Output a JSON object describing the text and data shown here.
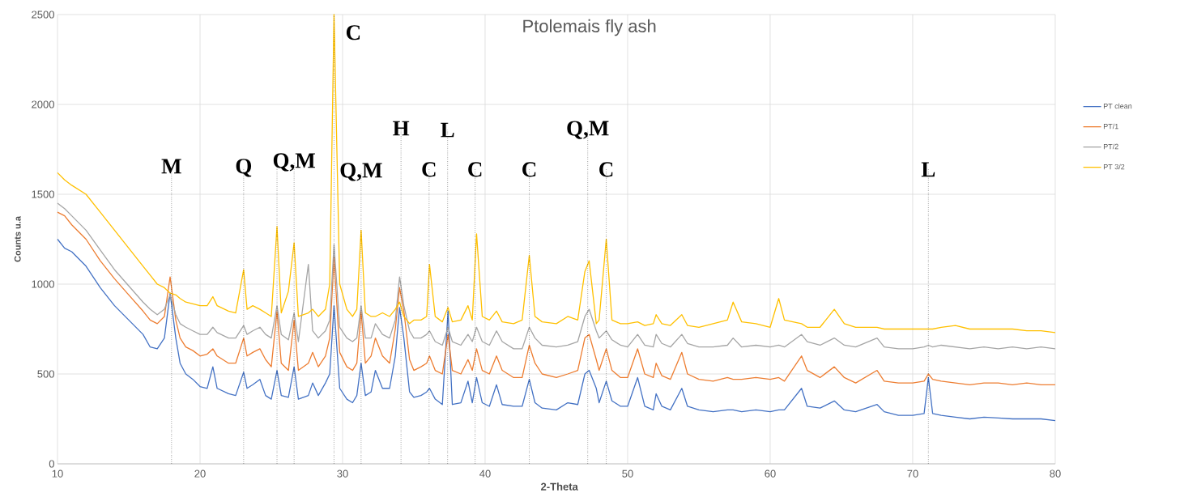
{
  "chart_data": {
    "type": "line",
    "title": "Ptolemais fly ash",
    "xlabel": "2-Theta",
    "ylabel": "Counts u.a",
    "x": [
      10,
      10.5,
      11,
      12,
      13,
      14,
      15,
      16,
      16.5,
      17,
      17.5,
      17.9,
      18.3,
      18.6,
      19,
      19.5,
      20,
      20.5,
      20.9,
      21.2,
      22,
      22.5,
      23.06,
      23.3,
      23.7,
      24.2,
      24.6,
      25,
      25.4,
      25.7,
      26.2,
      26.6,
      26.9,
      27.6,
      27.9,
      28.3,
      28.8,
      29.1,
      29.4,
      29.8,
      30.3,
      30.7,
      31,
      31.3,
      31.6,
      32,
      32.3,
      32.8,
      33.3,
      33.7,
      34,
      34.3,
      34.7,
      35,
      35.5,
      35.9,
      36.1,
      36.5,
      37,
      37.4,
      37.7,
      38.3,
      38.8,
      39.1,
      39.4,
      39.8,
      40.3,
      40.8,
      41.2,
      42,
      42.6,
      43.1,
      43.5,
      44,
      45,
      45.8,
      46.5,
      47,
      47.3,
      47.8,
      48,
      48.5,
      48.9,
      49.5,
      50,
      50.7,
      51.2,
      51.8,
      52,
      52.4,
      53,
      53.8,
      54.2,
      55,
      56,
      57,
      57.4,
      58,
      59,
      60,
      60.6,
      61,
      62.2,
      62.6,
      63.5,
      64.5,
      65.2,
      66,
      67.5,
      68,
      69,
      70,
      70.8,
      71.1,
      71.4,
      72,
      73,
      74,
      75,
      76,
      77,
      78,
      79,
      80
    ],
    "series": [
      {
        "name": "PT clean",
        "color": "#4472c4",
        "values": [
          1250,
          1200,
          1180,
          1100,
          980,
          880,
          800,
          720,
          650,
          640,
          700,
          950,
          700,
          560,
          500,
          470,
          430,
          420,
          540,
          420,
          390,
          380,
          510,
          420,
          440,
          470,
          380,
          360,
          520,
          380,
          370,
          540,
          360,
          380,
          450,
          380,
          450,
          500,
          880,
          420,
          360,
          340,
          380,
          560,
          380,
          400,
          520,
          420,
          420,
          600,
          870,
          700,
          400,
          370,
          380,
          400,
          420,
          360,
          330,
          850,
          330,
          340,
          460,
          340,
          480,
          340,
          320,
          440,
          330,
          320,
          320,
          470,
          340,
          310,
          300,
          340,
          330,
          500,
          520,
          420,
          340,
          460,
          350,
          320,
          320,
          480,
          320,
          300,
          390,
          320,
          300,
          420,
          320,
          300,
          290,
          300,
          300,
          290,
          300,
          290,
          300,
          300,
          420,
          320,
          310,
          350,
          300,
          290,
          330,
          290,
          270,
          270,
          280,
          480,
          280,
          270,
          260,
          250,
          260,
          255,
          250,
          250,
          250,
          240
        ]
      },
      {
        "name": "PT/1",
        "color": "#ed7d31",
        "values": [
          1400,
          1380,
          1330,
          1250,
          1130,
          1030,
          940,
          850,
          800,
          780,
          820,
          1040,
          800,
          700,
          650,
          630,
          600,
          610,
          640,
          600,
          560,
          560,
          700,
          600,
          620,
          640,
          580,
          540,
          850,
          560,
          520,
          800,
          520,
          560,
          620,
          540,
          600,
          700,
          1150,
          620,
          540,
          520,
          560,
          850,
          560,
          600,
          700,
          600,
          560,
          750,
          980,
          850,
          580,
          520,
          540,
          560,
          600,
          520,
          500,
          720,
          520,
          500,
          580,
          520,
          640,
          520,
          500,
          600,
          520,
          480,
          480,
          660,
          560,
          500,
          480,
          500,
          520,
          700,
          720,
          580,
          520,
          640,
          520,
          480,
          480,
          640,
          500,
          480,
          560,
          490,
          470,
          620,
          500,
          470,
          460,
          480,
          470,
          470,
          480,
          470,
          480,
          460,
          600,
          520,
          480,
          540,
          480,
          450,
          520,
          460,
          450,
          450,
          460,
          500,
          470,
          460,
          450,
          440,
          450,
          450,
          440,
          450,
          440,
          440
        ]
      },
      {
        "name": "PT/2",
        "color": "#a5a5a5",
        "values": [
          1450,
          1420,
          1380,
          1300,
          1190,
          1080,
          990,
          900,
          860,
          830,
          860,
          940,
          830,
          780,
          760,
          740,
          720,
          720,
          760,
          730,
          700,
          700,
          770,
          720,
          740,
          760,
          720,
          700,
          880,
          720,
          690,
          840,
          680,
          1110,
          740,
          700,
          740,
          800,
          1220,
          760,
          700,
          680,
          700,
          880,
          700,
          700,
          780,
          720,
          700,
          800,
          1040,
          880,
          740,
          700,
          700,
          720,
          740,
          680,
          660,
          760,
          680,
          660,
          720,
          680,
          760,
          680,
          660,
          740,
          680,
          640,
          640,
          760,
          700,
          660,
          650,
          660,
          680,
          820,
          860,
          740,
          700,
          740,
          690,
          660,
          650,
          720,
          660,
          650,
          720,
          670,
          650,
          720,
          670,
          650,
          650,
          660,
          700,
          650,
          660,
          650,
          660,
          650,
          720,
          680,
          660,
          700,
          660,
          650,
          700,
          650,
          640,
          640,
          650,
          660,
          650,
          660,
          650,
          640,
          650,
          640,
          650,
          640,
          650,
          640
        ]
      },
      {
        "name": "PT 3/2",
        "color": "#ffc000",
        "values": [
          1620,
          1580,
          1550,
          1500,
          1400,
          1300,
          1200,
          1100,
          1050,
          1000,
          980,
          950,
          940,
          920,
          900,
          890,
          880,
          880,
          930,
          880,
          850,
          840,
          1080,
          860,
          880,
          860,
          840,
          820,
          1320,
          840,
          960,
          1230,
          820,
          840,
          860,
          820,
          860,
          1000,
          2500,
          1000,
          860,
          820,
          860,
          1300,
          840,
          820,
          820,
          840,
          820,
          860,
          900,
          820,
          780,
          800,
          800,
          820,
          1110,
          820,
          790,
          870,
          790,
          800,
          880,
          800,
          1280,
          820,
          800,
          850,
          790,
          780,
          800,
          1160,
          820,
          790,
          780,
          820,
          800,
          1070,
          1130,
          780,
          800,
          1250,
          800,
          780,
          780,
          790,
          770,
          780,
          830,
          780,
          770,
          830,
          770,
          760,
          780,
          800,
          900,
          790,
          780,
          760,
          920,
          800,
          780,
          760,
          760,
          860,
          780,
          760,
          760,
          750,
          750,
          750,
          750,
          750,
          750,
          760,
          770,
          750,
          750,
          750,
          750,
          740,
          740,
          730
        ]
      }
    ],
    "xlim": [
      10,
      80
    ],
    "xticks": [
      10,
      20,
      30,
      40,
      50,
      60,
      70,
      80
    ],
    "ylim": [
      0,
      2500
    ],
    "yticks": [
      0,
      500,
      1000,
      1500,
      2000,
      2500
    ],
    "grid": true,
    "legend": "right",
    "line_style": "solid",
    "annotations": [
      {
        "text": "M",
        "x": 18.0,
        "y": 1656
      },
      {
        "text": "Q",
        "x": 23.06,
        "y": 1647
      },
      {
        "text": "Q,M",
        "x": 26.6,
        "y": 1678
      },
      {
        "text": "C",
        "x": 29.4,
        "y": 2400
      },
      {
        "text": "Q,M",
        "x": 31.3,
        "y": 1624
      },
      {
        "text": "H",
        "x": 34.1,
        "y": 1867
      },
      {
        "text": "C",
        "x": 36.07,
        "y": 1638
      },
      {
        "text": "L",
        "x": 37.37,
        "y": 1858
      },
      {
        "text": "C",
        "x": 39.3,
        "y": 1638
      },
      {
        "text": "C",
        "x": 43.1,
        "y": 1638
      },
      {
        "text": "Q,M",
        "x": 47.2,
        "y": 1858
      },
      {
        "text": "C",
        "x": 48.5,
        "y": 1638
      },
      {
        "text": "L",
        "x": 71.1,
        "y": 1638
      }
    ],
    "ref_lines": [
      {
        "axis": "x",
        "value": 18.0,
        "color": "#000000",
        "line_style": "dotted"
      },
      {
        "axis": "x",
        "value": 23.06,
        "color": "#000000",
        "line_style": "dotted"
      },
      {
        "axis": "x",
        "value": 25.4,
        "color": "#000000",
        "line_style": "dotted"
      },
      {
        "axis": "x",
        "value": 26.6,
        "color": "#000000",
        "line_style": "dotted"
      },
      {
        "axis": "x",
        "value": 29.4,
        "color": "#000000",
        "line_style": "dotted"
      },
      {
        "axis": "x",
        "value": 31.3,
        "color": "#000000",
        "line_style": "dotted"
      },
      {
        "axis": "x",
        "value": 34.1,
        "color": "#000000",
        "line_style": "dotted"
      },
      {
        "axis": "x",
        "value": 36.07,
        "color": "#000000",
        "line_style": "dotted"
      },
      {
        "axis": "x",
        "value": 37.37,
        "color": "#000000",
        "line_style": "dotted"
      },
      {
        "axis": "x",
        "value": 39.3,
        "color": "#000000",
        "line_style": "dotted"
      },
      {
        "axis": "x",
        "value": 43.1,
        "color": "#000000",
        "line_style": "dotted"
      },
      {
        "axis": "x",
        "value": 47.2,
        "color": "#000000",
        "line_style": "dotted"
      },
      {
        "axis": "x",
        "value": 48.5,
        "color": "#000000",
        "line_style": "dotted"
      },
      {
        "axis": "x",
        "value": 71.1,
        "color": "#000000",
        "line_style": "dotted"
      }
    ]
  }
}
